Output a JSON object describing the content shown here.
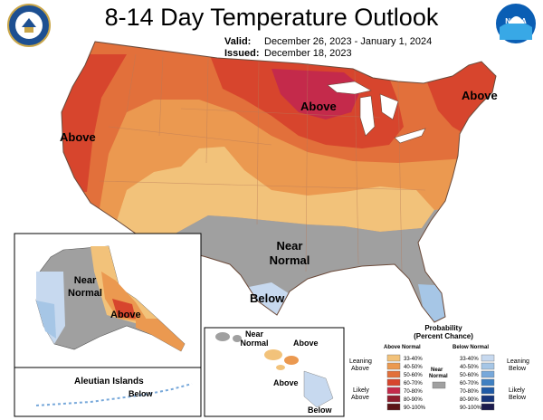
{
  "header": {
    "title": "8-14 Day Temperature Outlook",
    "valid_label": "Valid:",
    "valid_value": "December 26, 2023 - January 1, 2024",
    "issued_label": "Issued:",
    "issued_value": "December 18, 2023",
    "noaa_logo_text": "NOAA"
  },
  "map_labels": {
    "west_above": "Above",
    "great_lakes_above": "Above",
    "northeast_above": "Above",
    "south_near_normal_1": "Near",
    "south_near_normal_2": "Normal",
    "texas_below": "Below",
    "alaska_near_1": "Near",
    "alaska_near_2": "Normal",
    "alaska_above": "Above",
    "aleutian_title": "Aleutian Islands",
    "aleutian_below": "Below",
    "hawaii_near_1": "Near",
    "hawaii_near_2": "Normal",
    "hawaii_above_1": "Above",
    "hawaii_above_2": "Above",
    "hawaii_below": "Below"
  },
  "legend": {
    "title_1": "Probability",
    "title_2": "(Percent Chance)",
    "above_header": "Above Normal",
    "below_header": "Below Normal",
    "leaning_above_1": "Leaning",
    "leaning_above_2": "Above",
    "likely_above_1": "Likely",
    "likely_above_2": "Above",
    "near_normal_1": "Near",
    "near_normal_2": "Normal",
    "leaning_below_1": "Leaning",
    "leaning_below_2": "Below",
    "likely_below_1": "Likely",
    "likely_below_2": "Below",
    "above_bins": [
      {
        "label": "33-40%",
        "color": "#f2c27a"
      },
      {
        "label": "40-50%",
        "color": "#eb9950"
      },
      {
        "label": "50-60%",
        "color": "#e2703b"
      },
      {
        "label": "60-70%",
        "color": "#d7452d"
      },
      {
        "label": "70-80%",
        "color": "#c42a4b"
      },
      {
        "label": "80-90%",
        "color": "#8f1d2e"
      },
      {
        "label": "90-100%",
        "color": "#5b1416"
      }
    ],
    "below_bins": [
      {
        "label": "33-40%",
        "color": "#c7d9ef"
      },
      {
        "label": "40-50%",
        "color": "#a6c6e6"
      },
      {
        "label": "50-60%",
        "color": "#77a8da"
      },
      {
        "label": "60-70%",
        "color": "#3f80c2"
      },
      {
        "label": "70-80%",
        "color": "#1f5aa6"
      },
      {
        "label": "80-90%",
        "color": "#17357b"
      },
      {
        "label": "90-100%",
        "color": "#1b1b4d"
      }
    ],
    "near_normal_color": "#a0a0a0"
  }
}
